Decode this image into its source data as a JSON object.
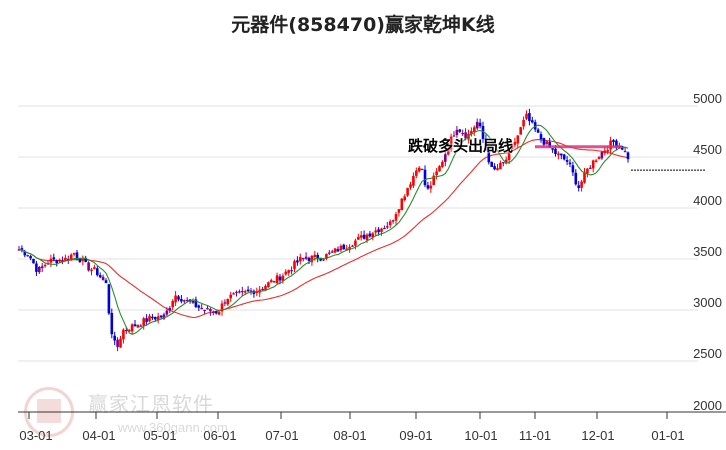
{
  "title": "元器件(858470)赢家乾坤K线",
  "signal_label": "跌破多头出局线",
  "watermark": {
    "brand": "赢家江恩软件",
    "url": "www.360gann.com"
  },
  "colors": {
    "up": "#ff0000",
    "down": "#0000dd",
    "neutral": "#800080",
    "ma_short": "#2e8b2e",
    "ma_long": "#e83030",
    "signal_line": "#e0307a",
    "grid": "#e2e2e2",
    "axis": "#333333"
  },
  "chart_data": {
    "type": "candlestick",
    "title": "元器件(858470)赢家乾坤K线",
    "xlabel": "",
    "ylabel": "",
    "y_ticks": [
      5000,
      4500,
      4000,
      3500,
      3000,
      2500,
      2000
    ],
    "ylim": [
      2000,
      5300
    ],
    "x_ticks": [
      "03-01",
      "04-01",
      "05-01",
      "06-01",
      "07-01",
      "08-01",
      "09-01",
      "10-01",
      "11-01",
      "12-01",
      "01-01"
    ],
    "grid": true,
    "annotation": "跌破多头出局线",
    "last_price_approx": 4450,
    "price_path": [
      {
        "date": "02-24",
        "close": 3600
      },
      {
        "date": "03-01",
        "close": 3540
      },
      {
        "date": "03-05",
        "close": 3380
      },
      {
        "date": "03-10",
        "close": 3480
      },
      {
        "date": "03-18",
        "close": 3500
      },
      {
        "date": "03-22",
        "close": 3560
      },
      {
        "date": "03-28",
        "close": 3420
      },
      {
        "date": "04-01",
        "close": 3380
      },
      {
        "date": "04-06",
        "close": 3250
      },
      {
        "date": "04-08",
        "close": 2850
      },
      {
        "date": "04-11",
        "close": 2600
      },
      {
        "date": "04-14",
        "close": 2800
      },
      {
        "date": "04-20",
        "close": 2850
      },
      {
        "date": "04-28",
        "close": 2920
      },
      {
        "date": "05-05",
        "close": 2940
      },
      {
        "date": "05-10",
        "close": 3150
      },
      {
        "date": "05-15",
        "close": 3100
      },
      {
        "date": "05-25",
        "close": 3000
      },
      {
        "date": "06-01",
        "close": 2980
      },
      {
        "date": "06-05",
        "close": 3120
      },
      {
        "date": "06-20",
        "close": 3200
      },
      {
        "date": "07-01",
        "close": 3330
      },
      {
        "date": "07-10",
        "close": 3500
      },
      {
        "date": "07-20",
        "close": 3520
      },
      {
        "date": "08-01",
        "close": 3650
      },
      {
        "date": "08-10",
        "close": 3750
      },
      {
        "date": "08-20",
        "close": 3850
      },
      {
        "date": "08-28",
        "close": 4200
      },
      {
        "date": "09-03",
        "close": 4450
      },
      {
        "date": "09-06",
        "close": 4150
      },
      {
        "date": "09-12",
        "close": 4400
      },
      {
        "date": "09-20",
        "close": 4800
      },
      {
        "date": "09-25",
        "close": 4700
      },
      {
        "date": "09-30",
        "close": 4850
      },
      {
        "date": "10-08",
        "close": 4350
      },
      {
        "date": "10-15",
        "close": 4450
      },
      {
        "date": "10-22",
        "close": 4700
      },
      {
        "date": "10-27",
        "close": 4900
      },
      {
        "date": "11-03",
        "close": 4700
      },
      {
        "date": "11-10",
        "close": 4550
      },
      {
        "date": "11-17",
        "close": 4450
      },
      {
        "date": "11-22",
        "close": 4200
      },
      {
        "date": "11-27",
        "close": 4400
      },
      {
        "date": "12-01",
        "close": 4500
      },
      {
        "date": "12-08",
        "close": 4650
      },
      {
        "date": "12-12",
        "close": 4600
      },
      {
        "date": "12-16",
        "close": 4450
      }
    ],
    "series": [
      {
        "name": "short-term trend line (green)",
        "color": "#2e8b2e"
      },
      {
        "name": "long-term trend line (red)",
        "color": "#e83030"
      },
      {
        "name": "bull exit line (pink horizontal)",
        "value_approx": 4600,
        "from": "11-01",
        "to": "12-12"
      }
    ]
  },
  "axis": {
    "y_labels": [
      "5000",
      "4500",
      "4000",
      "3500",
      "3000",
      "2500",
      "2000"
    ],
    "x_labels": [
      "03-01",
      "04-01",
      "05-01",
      "06-01",
      "07-01",
      "08-01",
      "09-01",
      "10-01",
      "11-01",
      "12-01",
      "01-01"
    ]
  }
}
